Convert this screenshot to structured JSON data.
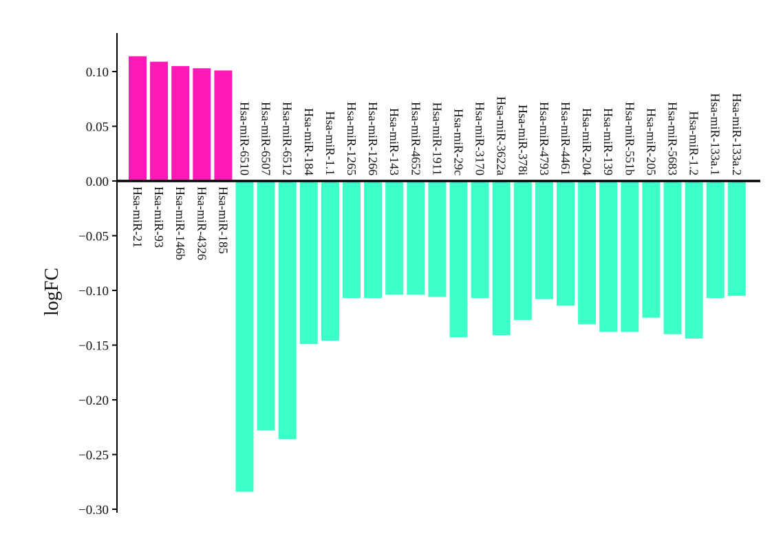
{
  "chart_data": {
    "type": "bar",
    "title": "",
    "xlabel": "",
    "ylabel": "logFC",
    "ylim": [
      -0.3,
      0.12
    ],
    "yticks": [
      0.1,
      0.05,
      0.0,
      -0.05,
      -0.1,
      -0.15,
      -0.2,
      -0.25,
      -0.3
    ],
    "ytick_labels": [
      "0.10",
      "0.05",
      "0.00",
      "−0.05",
      "−0.10",
      "−0.15",
      "−0.20",
      "−0.25",
      "−0.30"
    ],
    "grid": false,
    "legend": "none",
    "colors": {
      "up": "#ff1ab8",
      "down": "#3dffc8",
      "axis": "#000000"
    },
    "categories": [
      "Hsa-miR-21",
      "Hsa-miR-93",
      "Hsa-miR-146b",
      "Hsa-miR-4326",
      "Hsa-miR-185",
      "Hsa-miR-6510",
      "Hsa-miR-6507",
      "Hsa-miR-6512",
      "Hsa-miR-184",
      "Hsa-miR-1.1",
      "Hsa-miR-1265",
      "Hsa-miR-1266",
      "Hsa-miR-143",
      "Hsa-miR-4652",
      "Hsa-miR-1911",
      "Hsa-miR-29c",
      "Hsa-miR-3170",
      "Hsa-miR-3622a",
      "Hsa-miR-378i",
      "Hsa-miR-4793",
      "Hsa-miR-4461",
      "Hsa-miR-204",
      "Hsa-miR-139",
      "Hsa-miR-551b",
      "Hsa-miR-205",
      "Hsa-miR-5683",
      "Hsa-miR-1.2",
      "Hsa-miR-133a.1",
      "Hsa-miR-133a.2"
    ],
    "values": [
      0.114,
      0.109,
      0.105,
      0.103,
      0.101,
      -0.284,
      -0.228,
      -0.236,
      -0.149,
      -0.146,
      -0.107,
      -0.107,
      -0.104,
      -0.104,
      -0.106,
      -0.143,
      -0.107,
      -0.141,
      -0.127,
      -0.108,
      -0.114,
      -0.131,
      -0.138,
      -0.138,
      -0.125,
      -0.14,
      -0.144,
      -0.107,
      -0.105
    ]
  }
}
